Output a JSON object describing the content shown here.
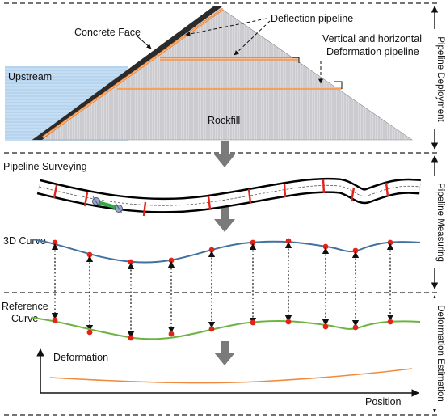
{
  "deployment": {
    "labels": {
      "concrete_face": "Concrete Face",
      "deflection_pipeline": "Deflection pipeline",
      "deformation_line1": "Vertical and horizontal",
      "deformation_line2": "Deformation pipeline",
      "upstream": "Upstream",
      "rockfill": "Rockfill"
    }
  },
  "measuring": {
    "surveying_label": "Pipeline Surveying",
    "curve3d_label": "3D Curve",
    "reference_label_line1": "Reference",
    "reference_label_line2": "Curve"
  },
  "estimation": {
    "deformation_label": "Deformation",
    "position_label": "Position"
  },
  "stages": [
    {
      "name": "Pipeline Deployment"
    },
    {
      "name": "Pipeline Measuring"
    },
    {
      "name": "Deformation Estimation"
    }
  ],
  "colors": {
    "water": "#b6d4ee",
    "rockfill": "#d3d3d6",
    "pipe_orange": "#f08a3c",
    "curve_blue": "#41729f",
    "curve_green": "#6cb43f",
    "marker_red": "#e2231a",
    "arrow_gray": "#7a7a7a"
  }
}
